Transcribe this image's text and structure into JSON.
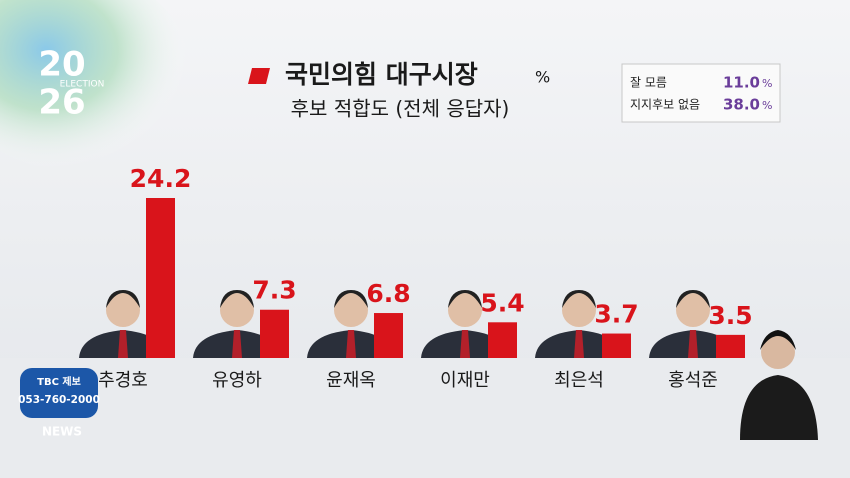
{
  "chart_data": {
    "type": "bar",
    "title": "국민의힘 대구시장",
    "unit": "%",
    "subtitle": "후보 적합도 (전체 응답자)",
    "categories": [
      "추경호",
      "유영하",
      "윤재옥",
      "이재만",
      "최은석",
      "홍석준"
    ],
    "values": [
      24.2,
      7.3,
      6.8,
      5.4,
      3.7,
      3.5
    ],
    "color": "#d9141b",
    "aside": {
      "categories": [
        "잘 모름",
        "지지후보 없음"
      ],
      "values": [
        11.0,
        38.0
      ],
      "value_labels": [
        "11.0",
        "38.0"
      ],
      "color": "#6a3d9a"
    }
  },
  "logo": {
    "top": "20",
    "middle": "ELECTION",
    "bottom": "26"
  },
  "hotline": {
    "label": "TBC 제보",
    "number": "053-760-2000",
    "brand": "NEWS"
  }
}
